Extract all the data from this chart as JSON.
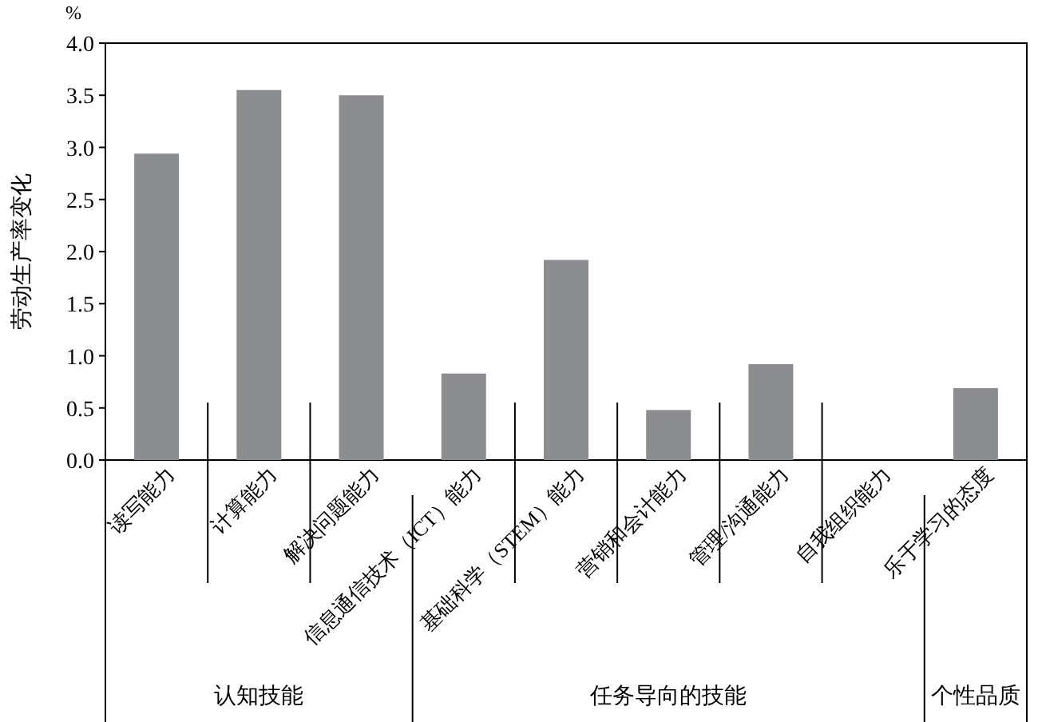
{
  "chart_data": {
    "type": "bar",
    "ylabel": "劳动生产率变化",
    "categories": [
      "读写能力",
      "计算能力",
      "解决问题能力",
      "信息通信技术（ICT）能力",
      "基础科学（STEM）能力",
      "营销和会计能力",
      "管理/沟通能力",
      "自我组织能力",
      "乐于学习的态度"
    ],
    "values": [
      2.94,
      3.55,
      3.5,
      0.83,
      1.92,
      0.48,
      0.92,
      0,
      0.69
    ],
    "color": "#8c8d91",
    "ylim": [
      0,
      4
    ],
    "yticks": [
      {
        "value": 0,
        "label": "0.0"
      },
      {
        "value": 0.5,
        "label": "0.5"
      },
      {
        "value": 1,
        "label": "1.0"
      },
      {
        "value": 1.5,
        "label": "1.5"
      },
      {
        "value": 2,
        "label": "2.0"
      },
      {
        "value": 2.5,
        "label": "2.5"
      },
      {
        "value": 3,
        "label": "3.0"
      },
      {
        "value": 3.5,
        "label": "3.5"
      },
      {
        "value": 4,
        "label": "4.0"
      }
    ],
    "grid": false,
    "annotations": [
      "%",
      "认知技能",
      "任务导向的技能",
      "个性品质"
    ]
  }
}
